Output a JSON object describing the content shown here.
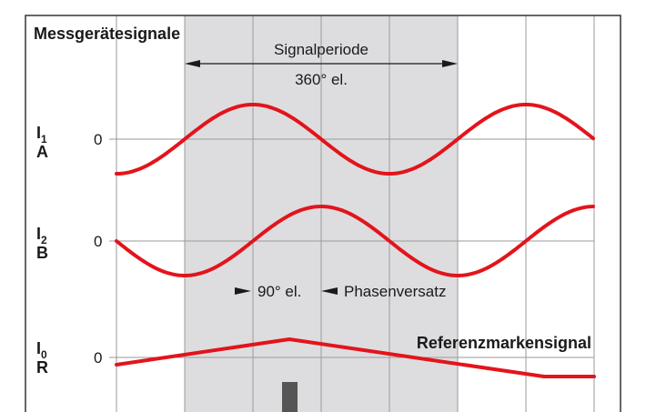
{
  "title": "Messgerätesignale",
  "period_label": "Signalperiode",
  "period_value": "360° el.",
  "phase_value": "90° el.",
  "phase_label": "Phasenversatz",
  "reference_label": "Referenzmarkensignal",
  "zero_label": "0",
  "channels": [
    {
      "id": "I",
      "sub": "1",
      "letter": "A"
    },
    {
      "id": "I",
      "sub": "2",
      "letter": "B"
    },
    {
      "id": "I",
      "sub": "0",
      "letter": "R"
    }
  ],
  "colors": {
    "signal": "#e3141b",
    "shade": "#dddde0",
    "grid": "#9a9a9a",
    "frame": "#333333",
    "marker": "#555555"
  }
}
